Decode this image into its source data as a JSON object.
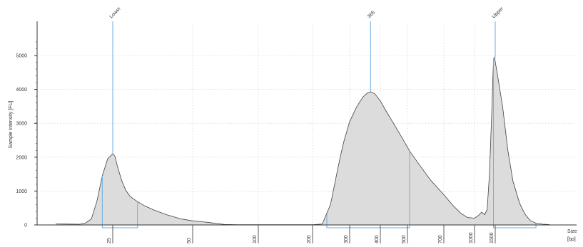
{
  "chart_data": {
    "type": "area",
    "xlabel": "Size",
    "xunit": "[bp]",
    "ylabel": "Sample Intensity [FU]",
    "ylim": [
      0,
      5500
    ],
    "y_ticks": [
      0,
      1000,
      2000,
      3000,
      4000,
      5000
    ],
    "x_ticks": [
      "25",
      "50",
      "100",
      "200",
      "300",
      "400",
      "500",
      "700",
      "1000",
      "1500"
    ],
    "x_tick_positions_bp": [
      25,
      50,
      100,
      200,
      300,
      400,
      500,
      700,
      1000,
      1500
    ],
    "grid": true,
    "fill_color": "#dcdcdc",
    "line_color": "#404040",
    "marker_color": "#6aaee8",
    "peaks": [
      {
        "label": "Lower",
        "size_bp": 25,
        "intensity": 2100
      },
      {
        "label": "365",
        "size_bp": 365,
        "intensity": 3930
      },
      {
        "label": "Upper",
        "size_bp": 1500,
        "intensity": 4950
      }
    ],
    "regions": [
      {
        "start_bp": 24,
        "end_bp": 31
      },
      {
        "start_bp": 230,
        "end_bp": 510
      },
      {
        "start_bp": 1450,
        "end_bp": 2000
      }
    ],
    "trace": [
      [
        20,
        30
      ],
      [
        21,
        26
      ],
      [
        22,
        22
      ],
      [
        22.5,
        60
      ],
      [
        23,
        180
      ],
      [
        23.5,
        700
      ],
      [
        24,
        1450
      ],
      [
        24.5,
        1950
      ],
      [
        25,
        2100
      ],
      [
        25.5,
        2020
      ],
      [
        26,
        1750
      ],
      [
        27,
        1320
      ],
      [
        28,
        1020
      ],
      [
        29,
        850
      ],
      [
        30,
        760
      ],
      [
        31,
        690
      ],
      [
        33,
        560
      ],
      [
        36,
        430
      ],
      [
        40,
        300
      ],
      [
        45,
        180
      ],
      [
        50,
        120
      ],
      [
        55,
        95
      ],
      [
        60,
        70
      ],
      [
        65,
        35
      ],
      [
        70,
        15
      ],
      [
        80,
        8
      ],
      [
        100,
        6
      ],
      [
        150,
        6
      ],
      [
        200,
        8
      ],
      [
        220,
        25
      ],
      [
        240,
        600
      ],
      [
        250,
        1100
      ],
      [
        260,
        1600
      ],
      [
        270,
        2050
      ],
      [
        280,
        2450
      ],
      [
        300,
        3050
      ],
      [
        320,
        3480
      ],
      [
        340,
        3780
      ],
      [
        355,
        3900
      ],
      [
        365,
        3930
      ],
      [
        380,
        3870
      ],
      [
        400,
        3660
      ],
      [
        420,
        3350
      ],
      [
        450,
        2940
      ],
      [
        480,
        2550
      ],
      [
        510,
        2180
      ],
      [
        560,
        1760
      ],
      [
        620,
        1320
      ],
      [
        700,
        890
      ],
      [
        780,
        570
      ],
      [
        850,
        350
      ],
      [
        920,
        220
      ],
      [
        1000,
        200
      ],
      [
        1080,
        280
      ],
      [
        1150,
        380
      ],
      [
        1220,
        300
      ],
      [
        1280,
        460
      ],
      [
        1340,
        1500
      ],
      [
        1400,
        3300
      ],
      [
        1450,
        4900
      ],
      [
        1480,
        4940
      ],
      [
        1520,
        4500
      ],
      [
        1580,
        3500
      ],
      [
        1640,
        2200
      ],
      [
        1700,
        1300
      ],
      [
        1780,
        650
      ],
      [
        1850,
        320
      ],
      [
        1920,
        130
      ],
      [
        2000,
        50
      ],
      [
        2100,
        20
      ],
      [
        2200,
        10
      ]
    ]
  }
}
